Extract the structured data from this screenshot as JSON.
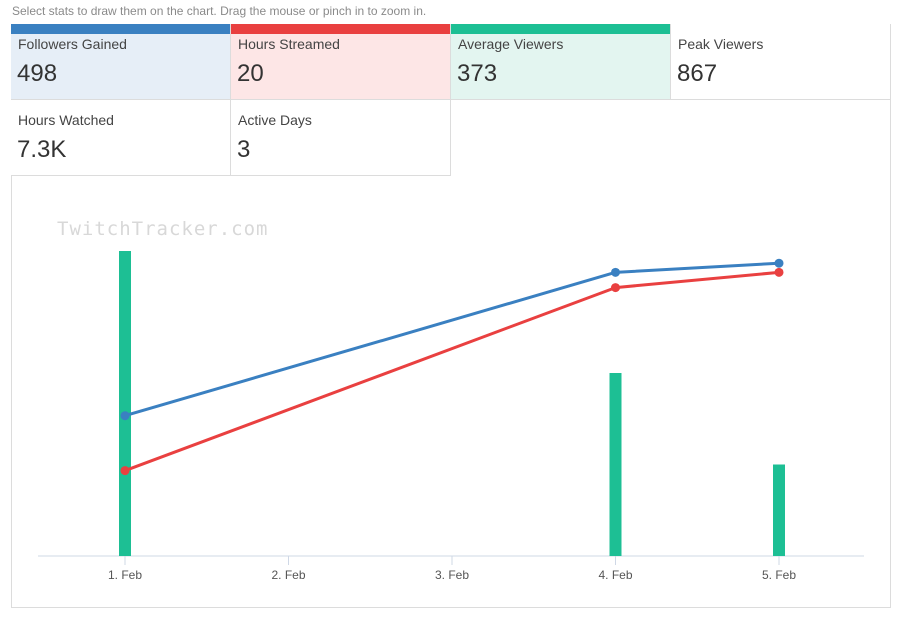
{
  "hint": "Select stats to draw them on the chart. Drag the mouse or pinch in to zoom in.",
  "watermark": "TwitchTracker.com",
  "stats": [
    {
      "label": "Followers Gained",
      "value": "498",
      "color": "#3a80c1",
      "bg": "#e6eef7",
      "selected": true
    },
    {
      "label": "Hours Streamed",
      "value": "20",
      "color": "#e94040",
      "bg": "#fde6e6",
      "selected": true
    },
    {
      "label": "Average Viewers",
      "value": "373",
      "color": "#1dbf94",
      "bg": "#e3f5f0",
      "selected": true
    },
    {
      "label": "Peak Viewers",
      "value": "867",
      "color": "#ffffff",
      "bg": "#ffffff",
      "selected": false
    },
    {
      "label": "Hours Watched",
      "value": "7.3K",
      "color": "#ffffff",
      "bg": "#ffffff",
      "selected": false
    },
    {
      "label": "Active Days",
      "value": "3",
      "color": "#ffffff",
      "bg": "#ffffff",
      "selected": false
    }
  ],
  "chart_data": {
    "type": "line",
    "categories": [
      "1. Feb",
      "2. Feb",
      "3. Feb",
      "4. Feb",
      "5. Feb"
    ],
    "x": [
      1,
      2,
      3,
      4,
      5
    ],
    "grid": false,
    "legend": "none",
    "series": [
      {
        "type": "bar",
        "color": "#1dbf94",
        "x": [
          1,
          4,
          5
        ],
        "values": [
          100,
          60,
          30
        ]
      },
      {
        "type": "line",
        "color": "#3a80c1",
        "x": [
          1,
          4,
          5
        ],
        "values": [
          46,
          93,
          96
        ]
      },
      {
        "type": "line",
        "color": "#e94040",
        "x": [
          1,
          4,
          5
        ],
        "values": [
          28,
          88,
          93
        ]
      }
    ]
  }
}
